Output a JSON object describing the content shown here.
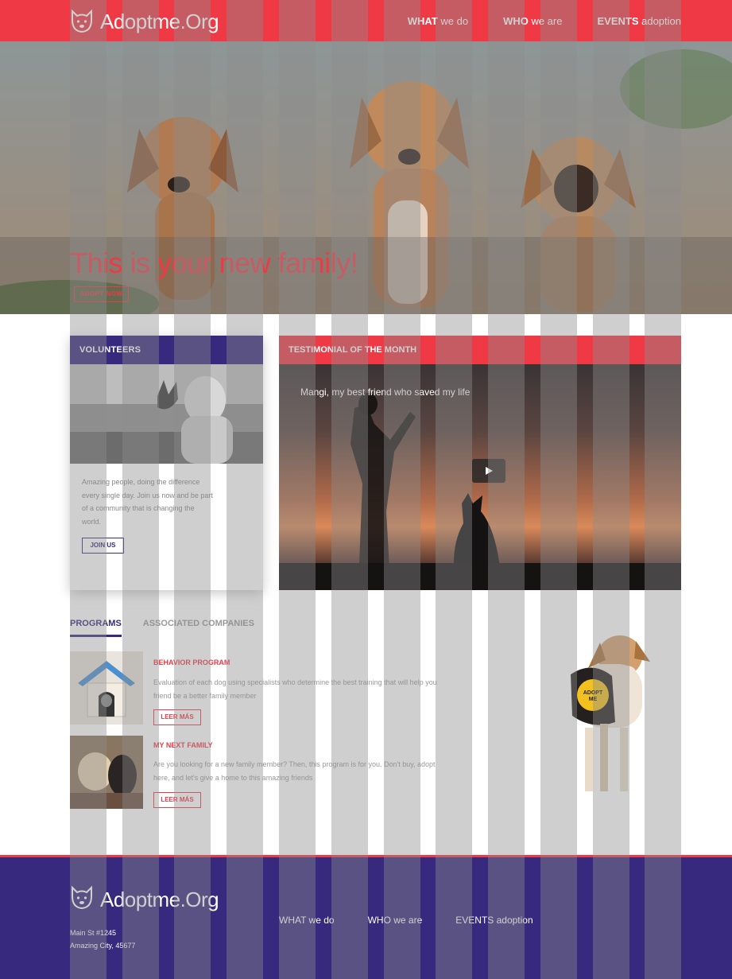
{
  "header": {
    "logo_text": "Adoptme.Org",
    "nav": [
      {
        "bold": "WHAT",
        "rest": " we do"
      },
      {
        "bold": "WHO",
        "rest": " we are"
      },
      {
        "bold": "EVENTS",
        "rest": " adoption"
      }
    ]
  },
  "hero": {
    "title": "This is your new family!",
    "button": "ADOPT NOW"
  },
  "volunteers": {
    "heading": "VOLUNTEERS",
    "text": "Amazing people, doing the difference every single day. Join us now and be part of a community that is changing the world.",
    "button": "JOIN US"
  },
  "testimonial": {
    "heading": "TESTIMONIAL OF THE MONTH",
    "video_title": "Mangi, my best friend who saved my life"
  },
  "programs": {
    "tabs": [
      "PROGRAMS",
      "ASSOCIATED COMPANIES"
    ],
    "items": [
      {
        "title": "BEHAVIOR PROGRAM",
        "desc": "Evaluation of each dog using specialists who determine the best training that will help you friend be a better family member",
        "button": "LEER MÁS"
      },
      {
        "title": "MY NEXT FAMILY",
        "desc": "Are you looking for a new family member? Then, this program is for you. Don't buy, adopt here, and let's give a home to this amazing friends",
        "button": "LEER MÁS"
      }
    ],
    "vest_text": "ADOPT ME"
  },
  "footer": {
    "logo_text": "Adoptme.Org",
    "address_line1": "Main St #1245",
    "address_line2": "Amazing City, 45677",
    "nav": [
      "WHAT we do",
      "WHO we are",
      "EVENTS adoption"
    ]
  },
  "colors": {
    "red": "#ef3a45",
    "purple": "#37297e"
  },
  "icons": [
    "dog-logo-icon",
    "play-icon"
  ]
}
